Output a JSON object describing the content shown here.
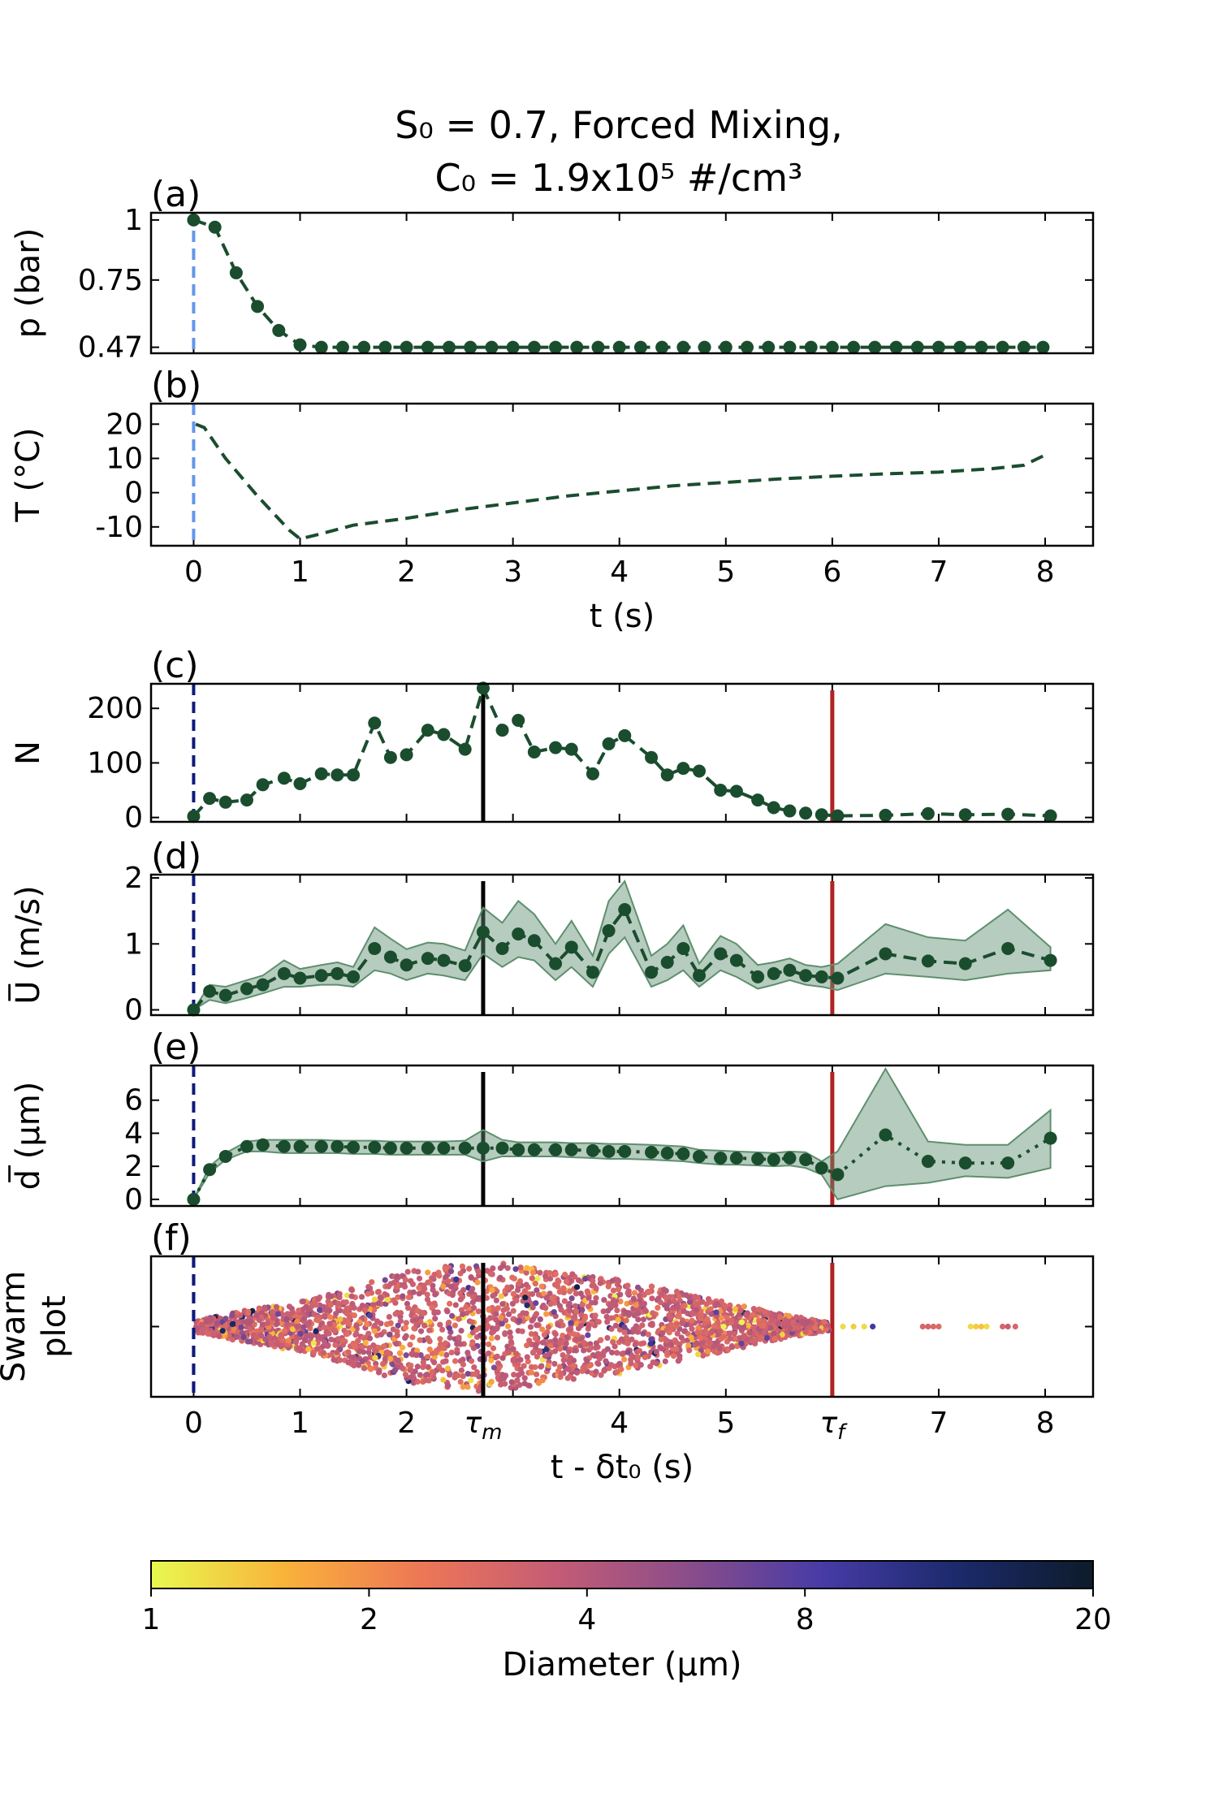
{
  "title_line1": "S₀ = 0.7, Forced Mixing,",
  "title_line2": "C₀ = 1.9x10⁵ #/cm³",
  "colors": {
    "series": "#1a4d2e",
    "band": "#5e8f6e",
    "start_line_top": "#6495ed",
    "start_line_bottom": "#0d1a7a",
    "tau_m_line": "#000000",
    "tau_f_line": "#b22222"
  },
  "chart_data": [
    {
      "panel": "(a)",
      "type": "line",
      "ylabel": "p (bar)",
      "yticks": [
        "1",
        "0.75",
        "0.47"
      ],
      "ytick_values": [
        1.0,
        0.75,
        0.47
      ],
      "ylim": [
        0.445,
        1.03
      ],
      "xlim": [
        -0.4,
        8.45
      ],
      "x": [
        0,
        0.2,
        0.4,
        0.6,
        0.8,
        1.0,
        1.2,
        1.4,
        1.6,
        1.8,
        2.0,
        2.2,
        2.4,
        2.6,
        2.8,
        3.0,
        3.2,
        3.4,
        3.6,
        3.8,
        4.0,
        4.2,
        4.4,
        4.6,
        4.8,
        5.0,
        5.2,
        5.4,
        5.6,
        5.8,
        6.0,
        6.2,
        6.4,
        6.6,
        6.8,
        7.0,
        7.2,
        7.4,
        7.6,
        7.8,
        7.98
      ],
      "y": [
        1.0,
        0.97,
        0.78,
        0.64,
        0.54,
        0.48,
        0.47,
        0.47,
        0.47,
        0.47,
        0.47,
        0.47,
        0.47,
        0.47,
        0.47,
        0.47,
        0.47,
        0.47,
        0.47,
        0.47,
        0.47,
        0.47,
        0.47,
        0.47,
        0.47,
        0.47,
        0.47,
        0.47,
        0.47,
        0.47,
        0.47,
        0.47,
        0.47,
        0.47,
        0.47,
        0.47,
        0.47,
        0.47,
        0.47,
        0.47,
        0.47
      ]
    },
    {
      "panel": "(b)",
      "type": "line",
      "ylabel": "T (°C)",
      "xlabel": "t (s)",
      "yticks": [
        "20",
        "10",
        "0",
        "-10"
      ],
      "ytick_values": [
        20,
        10,
        0,
        -10
      ],
      "ylim": [
        -15.5,
        26
      ],
      "xlim": [
        -0.4,
        8.45
      ],
      "xticks": [
        "0",
        "1",
        "2",
        "3",
        "4",
        "5",
        "6",
        "7",
        "8"
      ],
      "xtick_values": [
        0,
        1,
        2,
        3,
        4,
        5,
        6,
        7,
        8
      ],
      "x": [
        0.02,
        0.1,
        0.3,
        0.6,
        0.9,
        1.0,
        1.2,
        1.5,
        2.0,
        2.5,
        3.0,
        3.5,
        4.0,
        4.5,
        5.0,
        5.5,
        6.0,
        6.5,
        7.0,
        7.5,
        7.8,
        8.0
      ],
      "y": [
        20,
        19,
        10,
        -1,
        -11,
        -13.5,
        -12,
        -9.5,
        -7.5,
        -5,
        -3,
        -1,
        0.5,
        2,
        3,
        4,
        4.8,
        5.5,
        6,
        7,
        8,
        11
      ]
    },
    {
      "panel": "(c)",
      "type": "line",
      "ylabel": "N",
      "yticks": [
        "200",
        "100",
        "0"
      ],
      "ytick_values": [
        200,
        100,
        0
      ],
      "ylim": [
        -8,
        245
      ],
      "xlim": [
        -0.4,
        8.45
      ],
      "x": [
        0,
        0.15,
        0.3,
        0.5,
        0.65,
        0.85,
        1.0,
        1.2,
        1.35,
        1.5,
        1.7,
        1.85,
        2.0,
        2.2,
        2.35,
        2.55,
        2.72,
        2.9,
        3.05,
        3.2,
        3.4,
        3.55,
        3.75,
        3.9,
        4.05,
        4.3,
        4.45,
        4.6,
        4.75,
        4.95,
        5.1,
        5.3,
        5.45,
        5.6,
        5.75,
        5.9,
        6.05,
        6.5,
        6.9,
        7.25,
        7.65,
        8.05
      ],
      "y": [
        2,
        35,
        28,
        32,
        60,
        72,
        62,
        80,
        78,
        78,
        173,
        110,
        115,
        160,
        152,
        125,
        237,
        160,
        178,
        120,
        128,
        125,
        80,
        135,
        150,
        110,
        78,
        90,
        85,
        50,
        48,
        32,
        18,
        12,
        8,
        5,
        3,
        4,
        7,
        5,
        6,
        3
      ]
    },
    {
      "panel": "(d)",
      "type": "area",
      "ylabel": "U̅ (m/s)",
      "yticks": [
        "2",
        "1",
        "0"
      ],
      "ytick_values": [
        2,
        1,
        0
      ],
      "ylim": [
        -0.08,
        2.05
      ],
      "xlim": [
        -0.4,
        8.45
      ],
      "x": [
        0,
        0.15,
        0.3,
        0.5,
        0.65,
        0.85,
        1.0,
        1.2,
        1.35,
        1.5,
        1.7,
        1.85,
        2.0,
        2.2,
        2.35,
        2.55,
        2.72,
        2.9,
        3.05,
        3.2,
        3.4,
        3.55,
        3.75,
        3.9,
        4.05,
        4.3,
        4.45,
        4.6,
        4.75,
        4.95,
        5.1,
        5.3,
        5.45,
        5.6,
        5.75,
        5.9,
        6.05,
        6.5,
        6.9,
        7.25,
        7.65,
        8.05
      ],
      "y": [
        0.0,
        0.28,
        0.22,
        0.32,
        0.38,
        0.55,
        0.48,
        0.52,
        0.55,
        0.5,
        0.93,
        0.8,
        0.68,
        0.78,
        0.75,
        0.67,
        1.18,
        0.93,
        1.15,
        1.05,
        0.7,
        0.95,
        0.57,
        1.2,
        1.52,
        0.57,
        0.72,
        0.93,
        0.52,
        0.85,
        0.75,
        0.5,
        0.55,
        0.6,
        0.52,
        0.5,
        0.48,
        0.85,
        0.74,
        0.7,
        0.93,
        0.75
      ],
      "lower": [
        0.0,
        0.15,
        0.1,
        0.18,
        0.25,
        0.35,
        0.35,
        0.38,
        0.38,
        0.35,
        0.6,
        0.55,
        0.45,
        0.55,
        0.52,
        0.45,
        0.85,
        0.65,
        0.8,
        0.75,
        0.45,
        0.65,
        0.35,
        0.85,
        1.1,
        0.35,
        0.45,
        0.6,
        0.35,
        0.6,
        0.5,
        0.32,
        0.38,
        0.45,
        0.38,
        0.35,
        0.3,
        0.55,
        0.5,
        0.45,
        0.55,
        0.6
      ],
      "upper": [
        0.0,
        0.38,
        0.35,
        0.45,
        0.52,
        0.75,
        0.62,
        0.68,
        0.72,
        0.65,
        1.25,
        1.08,
        0.92,
        1.02,
        1.0,
        0.9,
        1.55,
        1.32,
        1.65,
        1.45,
        1.0,
        1.35,
        0.82,
        1.65,
        1.95,
        0.82,
        1.0,
        1.28,
        0.7,
        1.12,
        1.0,
        0.68,
        0.72,
        0.78,
        0.68,
        0.65,
        0.7,
        1.3,
        1.1,
        1.05,
        1.52,
        0.95
      ]
    },
    {
      "panel": "(e)",
      "type": "area",
      "ylabel": "d̅ (µm)",
      "yticks": [
        "6",
        "4",
        "2",
        "0"
      ],
      "ytick_values": [
        6,
        4,
        2,
        0
      ],
      "ylim": [
        -0.4,
        8.1
      ],
      "xlim": [
        -0.4,
        8.45
      ],
      "x": [
        0,
        0.15,
        0.3,
        0.5,
        0.65,
        0.85,
        1.0,
        1.2,
        1.35,
        1.5,
        1.7,
        1.85,
        2.0,
        2.2,
        2.35,
        2.55,
        2.72,
        2.9,
        3.05,
        3.2,
        3.4,
        3.55,
        3.75,
        3.9,
        4.05,
        4.3,
        4.45,
        4.6,
        4.75,
        4.95,
        5.1,
        5.3,
        5.45,
        5.6,
        5.75,
        5.9,
        6.05,
        6.5,
        6.9,
        7.25,
        7.65,
        8.05
      ],
      "y": [
        0.0,
        1.8,
        2.6,
        3.2,
        3.3,
        3.2,
        3.2,
        3.2,
        3.2,
        3.15,
        3.15,
        3.1,
        3.1,
        3.1,
        3.1,
        3.1,
        3.1,
        3.1,
        3.0,
        3.0,
        3.0,
        3.0,
        2.95,
        2.9,
        2.9,
        2.85,
        2.8,
        2.75,
        2.6,
        2.5,
        2.5,
        2.45,
        2.4,
        2.5,
        2.4,
        1.9,
        1.5,
        3.9,
        2.3,
        2.2,
        2.2,
        3.7
      ],
      "lower": [
        0.0,
        1.6,
        2.4,
        2.9,
        2.9,
        2.8,
        2.8,
        2.8,
        2.8,
        2.75,
        2.75,
        2.7,
        2.7,
        2.7,
        2.7,
        2.7,
        2.3,
        2.6,
        2.6,
        2.6,
        2.6,
        2.55,
        2.5,
        2.45,
        2.45,
        2.4,
        2.35,
        2.3,
        2.2,
        2.1,
        2.1,
        2.05,
        2.0,
        2.05,
        1.9,
        1.5,
        0.0,
        0.8,
        1.0,
        1.4,
        1.3,
        1.9
      ],
      "upper": [
        0.0,
        2.0,
        2.8,
        3.5,
        3.6,
        3.6,
        3.6,
        3.6,
        3.55,
        3.55,
        3.55,
        3.5,
        3.5,
        3.5,
        3.5,
        3.55,
        4.2,
        3.6,
        3.45,
        3.45,
        3.45,
        3.4,
        3.4,
        3.35,
        3.35,
        3.3,
        3.25,
        3.2,
        3.0,
        2.95,
        2.9,
        2.85,
        2.8,
        2.9,
        2.85,
        2.3,
        2.9,
        7.9,
        3.5,
        3.3,
        3.3,
        5.4
      ]
    },
    {
      "panel": "(f)",
      "type": "scatter",
      "ylabel_line1": "Swarm",
      "ylabel_line2": "plot",
      "xlabel": "t - δt₀ (s)",
      "xlim": [
        -0.4,
        8.45
      ],
      "xticks": [
        "0",
        "1",
        "2",
        "τm",
        "4",
        "5",
        "τf",
        "7",
        "8"
      ],
      "xtick_values": [
        0,
        1,
        2,
        2.72,
        4,
        5,
        6.0,
        7,
        8
      ],
      "envelope_x": [
        0,
        0.5,
        1.0,
        1.5,
        2.0,
        2.5,
        2.72,
        3.0,
        3.5,
        4.0,
        4.5,
        5.0,
        5.5,
        6.0,
        7.8
      ],
      "envelope_halfwidth": [
        0.08,
        0.25,
        0.38,
        0.6,
        0.85,
        0.95,
        1.0,
        0.95,
        0.82,
        0.72,
        0.55,
        0.38,
        0.2,
        0.05,
        0.03
      ],
      "color_by": "Diameter (µm)"
    }
  ],
  "markers": {
    "start_x": 0,
    "tau_m_x": 2.72,
    "tau_f_x": 6.0,
    "tau_m_label": "τm",
    "tau_f_label": "τf"
  },
  "colorbar": {
    "label": "Diameter (µm)",
    "ticks": [
      "1",
      "2",
      "4",
      "8",
      "20"
    ],
    "tick_values": [
      1,
      2,
      4,
      8,
      20
    ],
    "scale": "log",
    "stops": [
      "#e8f94f",
      "#f9b23a",
      "#ee7756",
      "#c55c75",
      "#8a4d8a",
      "#463ba6",
      "#1b2a6b",
      "#0d1b2a"
    ]
  }
}
